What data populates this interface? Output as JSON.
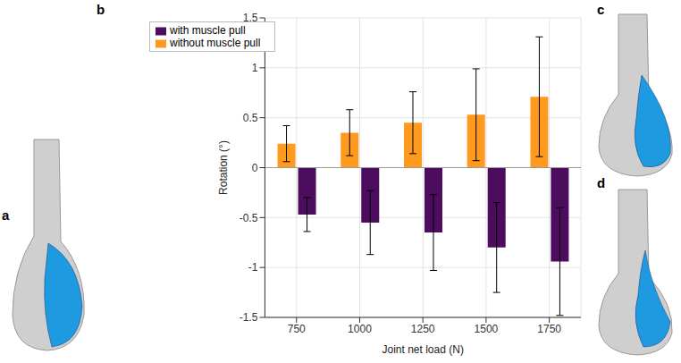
{
  "chart_data": {
    "type": "bar",
    "categories": [
      "750",
      "1000",
      "1250",
      "1500",
      "1750"
    ],
    "x_label": "Joint net load (N)",
    "y_label": "Rotation (°)",
    "ylim": [
      -1.5,
      1.5
    ],
    "yticks": [
      -1.5,
      -1,
      -0.5,
      0,
      0.5,
      1,
      1.5
    ],
    "grid": true,
    "legend": "upper left",
    "series": [
      {
        "name": "without muscle pull",
        "color": "#ff9a1f",
        "values": [
          0.24,
          0.35,
          0.45,
          0.53,
          0.71
        ],
        "errors": [
          0.18,
          0.23,
          0.31,
          0.46,
          0.6
        ]
      },
      {
        "name": "with muscle pull",
        "color": "#4d0d5f",
        "values": [
          -0.47,
          -0.55,
          -0.65,
          -0.8,
          -0.94
        ],
        "errors": [
          0.17,
          0.32,
          0.38,
          0.45,
          0.54
        ]
      }
    ]
  },
  "panel_labels": [
    "a",
    "b",
    "c",
    "d"
  ]
}
